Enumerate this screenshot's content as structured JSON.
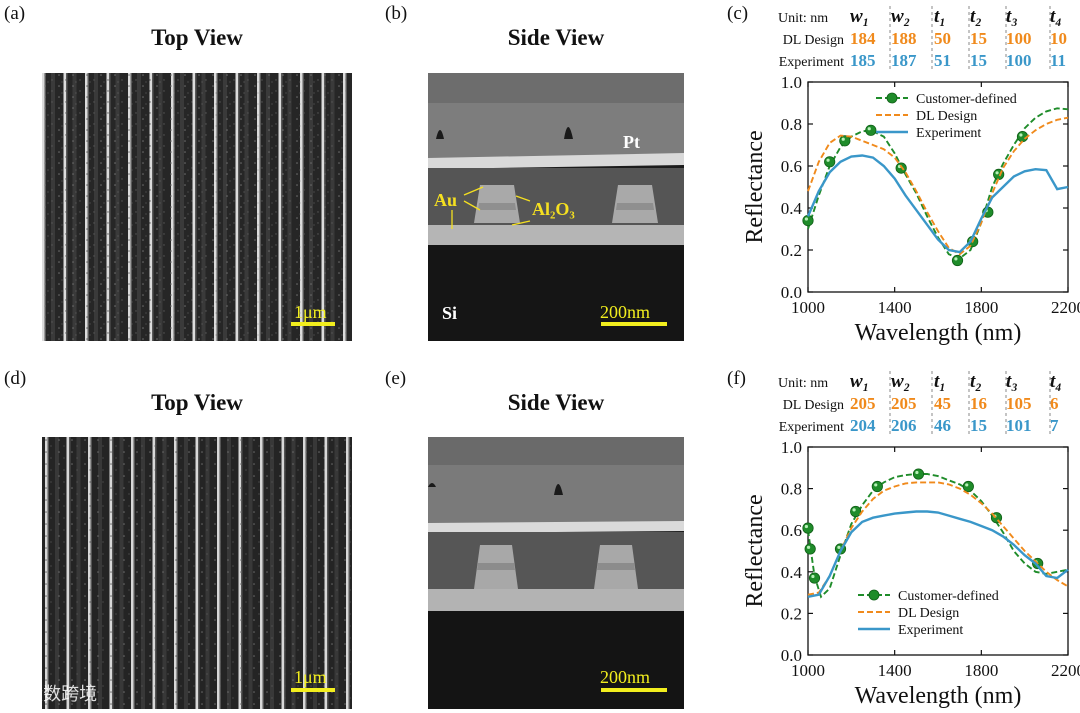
{
  "figure": {
    "colors": {
      "orange": "#f08a1c",
      "blue": "#3a97c9",
      "green": "#1f8c2a",
      "scalebar": "#f2ee1e",
      "label_yellow": "#f5e020"
    },
    "watermark": "大数跨境",
    "top_row": {
      "a": {
        "label": "(a)",
        "title": "Top View",
        "scale": "1μm"
      },
      "b": {
        "label": "(b)",
        "title": "Side View",
        "scale": "200nm",
        "annotations": {
          "pt": "Pt",
          "au": "Au",
          "al2o3": "Al₂O₃",
          "si": "Si"
        }
      },
      "c": {
        "label": "(c)",
        "table": {
          "headers": [
            "Unit: nm",
            "w₁",
            "w₂",
            "t₁",
            "t₂",
            "t₃",
            "t₄"
          ],
          "rows": [
            {
              "name": "DL Design",
              "values": [
                "184",
                "188",
                "50",
                "15",
                "100",
                "10"
              ]
            },
            {
              "name": "Experiment",
              "values": [
                "185",
                "187",
                "51",
                "15",
                "100",
                "11"
              ]
            }
          ]
        }
      }
    },
    "bottom_row": {
      "d": {
        "label": "(d)",
        "title": "Top View",
        "scale": "1μm"
      },
      "e": {
        "label": "(e)",
        "title": "Side View",
        "scale": "200nm"
      },
      "f": {
        "label": "(f)",
        "table": {
          "headers": [
            "Unit: nm",
            "w₁",
            "w₂",
            "t₁",
            "t₂",
            "t₃",
            "t₄"
          ],
          "rows": [
            {
              "name": "DL Design",
              "values": [
                "205",
                "205",
                "45",
                "16",
                "105",
                "6"
              ]
            },
            {
              "name": "Experiment",
              "values": [
                "204",
                "206",
                "46",
                "15",
                "101",
                "7"
              ]
            }
          ]
        }
      }
    }
  },
  "chart_data": [
    {
      "id": "c",
      "type": "line",
      "xlabel": "Wavelength (nm)",
      "ylabel": "Reflectance",
      "xlim": [
        1000,
        2200
      ],
      "ylim": [
        0.0,
        1.0
      ],
      "xticks": [
        1000,
        1400,
        1800,
        2200
      ],
      "yticks": [
        0.0,
        0.2,
        0.4,
        0.6,
        0.8,
        1.0
      ],
      "ytick_labels": [
        "0.0",
        "0.2",
        "0.4",
        "0.6",
        "0.8",
        "1.0"
      ],
      "legend": "top-left",
      "series": [
        {
          "name": "Customer-defined",
          "style": "green dashed with markers",
          "x": [
            1000,
            1050,
            1100,
            1150,
            1200,
            1250,
            1290,
            1350,
            1400,
            1450,
            1500,
            1550,
            1600,
            1650,
            1700,
            1750,
            1800,
            1850,
            1900,
            1950,
            2000,
            2050,
            2100,
            2150,
            2200
          ],
          "y": [
            0.3,
            0.46,
            0.6,
            0.69,
            0.74,
            0.765,
            0.77,
            0.74,
            0.66,
            0.56,
            0.47,
            0.36,
            0.26,
            0.18,
            0.16,
            0.2,
            0.33,
            0.5,
            0.61,
            0.7,
            0.78,
            0.83,
            0.86,
            0.875,
            0.87
          ],
          "markers_x": [
            1000,
            1100,
            1170,
            1290,
            1430,
            1690,
            1760,
            1830,
            1880,
            1990
          ],
          "markers_y": [
            0.34,
            0.62,
            0.72,
            0.77,
            0.59,
            0.15,
            0.24,
            0.38,
            0.56,
            0.74
          ]
        },
        {
          "name": "DL Design",
          "style": "orange dashed",
          "x": [
            1000,
            1050,
            1100,
            1150,
            1200,
            1250,
            1300,
            1350,
            1400,
            1450,
            1500,
            1550,
            1600,
            1650,
            1700,
            1750,
            1800,
            1850,
            1900,
            1950,
            2000,
            2050,
            2100,
            2150,
            2200
          ],
          "y": [
            0.48,
            0.62,
            0.71,
            0.745,
            0.74,
            0.72,
            0.7,
            0.68,
            0.64,
            0.57,
            0.48,
            0.38,
            0.29,
            0.21,
            0.18,
            0.22,
            0.33,
            0.47,
            0.59,
            0.67,
            0.73,
            0.77,
            0.8,
            0.82,
            0.83
          ]
        },
        {
          "name": "Experiment",
          "style": "blue solid",
          "x": [
            1000,
            1050,
            1100,
            1150,
            1200,
            1250,
            1300,
            1350,
            1400,
            1450,
            1500,
            1550,
            1600,
            1650,
            1700,
            1750,
            1800,
            1850,
            1900,
            1950,
            2000,
            2050,
            2100,
            2150,
            2200
          ],
          "y": [
            0.36,
            0.48,
            0.57,
            0.62,
            0.645,
            0.65,
            0.64,
            0.6,
            0.54,
            0.46,
            0.39,
            0.32,
            0.25,
            0.2,
            0.19,
            0.24,
            0.35,
            0.45,
            0.5,
            0.55,
            0.575,
            0.585,
            0.58,
            0.49,
            0.5
          ]
        }
      ]
    },
    {
      "id": "f",
      "type": "line",
      "xlabel": "Wavelength (nm)",
      "ylabel": "Reflectance",
      "xlim": [
        1000,
        2200
      ],
      "ylim": [
        0.0,
        1.0
      ],
      "xticks": [
        1000,
        1400,
        1800,
        2200
      ],
      "yticks": [
        0.0,
        0.2,
        0.4,
        0.6,
        0.8,
        1.0
      ],
      "ytick_labels": [
        "0.0",
        "0.2",
        "0.4",
        "0.6",
        "0.8",
        "1.0"
      ],
      "legend": "bottom-center",
      "series": [
        {
          "name": "Customer-defined",
          "style": "green dashed with markers",
          "x": [
            1000,
            1030,
            1060,
            1100,
            1150,
            1200,
            1250,
            1300,
            1350,
            1400,
            1450,
            1500,
            1550,
            1600,
            1650,
            1700,
            1750,
            1800,
            1850,
            1900,
            1950,
            2000,
            2050,
            2100,
            2150,
            2200
          ],
          "y": [
            0.6,
            0.38,
            0.28,
            0.32,
            0.48,
            0.63,
            0.72,
            0.79,
            0.83,
            0.855,
            0.865,
            0.87,
            0.87,
            0.86,
            0.84,
            0.82,
            0.79,
            0.74,
            0.67,
            0.59,
            0.5,
            0.44,
            0.4,
            0.39,
            0.4,
            0.41
          ],
          "markers_x": [
            1000,
            1010,
            1030,
            1150,
            1220,
            1320,
            1510,
            1740,
            1870,
            2060
          ],
          "markers_y": [
            0.61,
            0.51,
            0.37,
            0.51,
            0.69,
            0.81,
            0.87,
            0.81,
            0.66,
            0.44
          ]
        },
        {
          "name": "DL Design",
          "style": "orange dashed",
          "x": [
            1000,
            1050,
            1100,
            1150,
            1200,
            1250,
            1300,
            1350,
            1400,
            1450,
            1500,
            1550,
            1600,
            1650,
            1700,
            1750,
            1800,
            1850,
            1900,
            1950,
            2000,
            2050,
            2100,
            2150,
            2200
          ],
          "y": [
            0.29,
            0.3,
            0.38,
            0.5,
            0.61,
            0.69,
            0.75,
            0.79,
            0.81,
            0.825,
            0.83,
            0.83,
            0.83,
            0.82,
            0.8,
            0.77,
            0.73,
            0.68,
            0.62,
            0.56,
            0.5,
            0.45,
            0.4,
            0.36,
            0.33
          ]
        },
        {
          "name": "Experiment",
          "style": "blue solid",
          "x": [
            1000,
            1050,
            1100,
            1150,
            1200,
            1250,
            1300,
            1350,
            1400,
            1450,
            1500,
            1550,
            1600,
            1650,
            1700,
            1750,
            1800,
            1850,
            1900,
            1950,
            2000,
            2050,
            2100,
            2150,
            2200
          ],
          "y": [
            0.28,
            0.29,
            0.38,
            0.5,
            0.59,
            0.64,
            0.66,
            0.67,
            0.68,
            0.685,
            0.69,
            0.69,
            0.685,
            0.67,
            0.655,
            0.64,
            0.62,
            0.6,
            0.57,
            0.53,
            0.48,
            0.44,
            0.38,
            0.37,
            0.41
          ]
        }
      ]
    }
  ]
}
